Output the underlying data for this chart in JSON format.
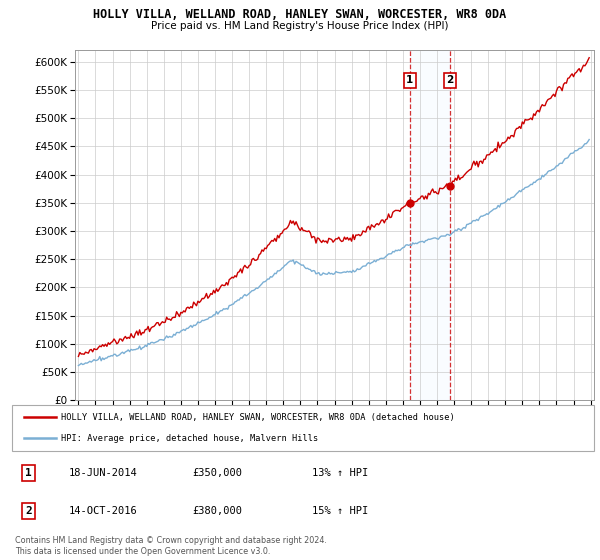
{
  "title": "HOLLY VILLA, WELLAND ROAD, HANLEY SWAN, WORCESTER, WR8 0DA",
  "subtitle": "Price paid vs. HM Land Registry's House Price Index (HPI)",
  "legend_line1": "HOLLY VILLA, WELLAND ROAD, HANLEY SWAN, WORCESTER, WR8 0DA (detached house)",
  "legend_line2": "HPI: Average price, detached house, Malvern Hills",
  "sale1_date": "18-JUN-2014",
  "sale1_price": 350000,
  "sale1_hpi": "13% ↑ HPI",
  "sale2_date": "14-OCT-2016",
  "sale2_price": 380000,
  "sale2_hpi": "15% ↑ HPI",
  "footer": "Contains HM Land Registry data © Crown copyright and database right 2024.\nThis data is licensed under the Open Government Licence v3.0.",
  "red_color": "#cc0000",
  "blue_color": "#7bafd4",
  "shade_color": "#ddeeff",
  "ylim": [
    0,
    620000
  ],
  "yticks": [
    0,
    50000,
    100000,
    150000,
    200000,
    250000,
    300000,
    350000,
    400000,
    450000,
    500000,
    550000,
    600000
  ],
  "x_start_year": 1995,
  "x_end_year": 2025
}
